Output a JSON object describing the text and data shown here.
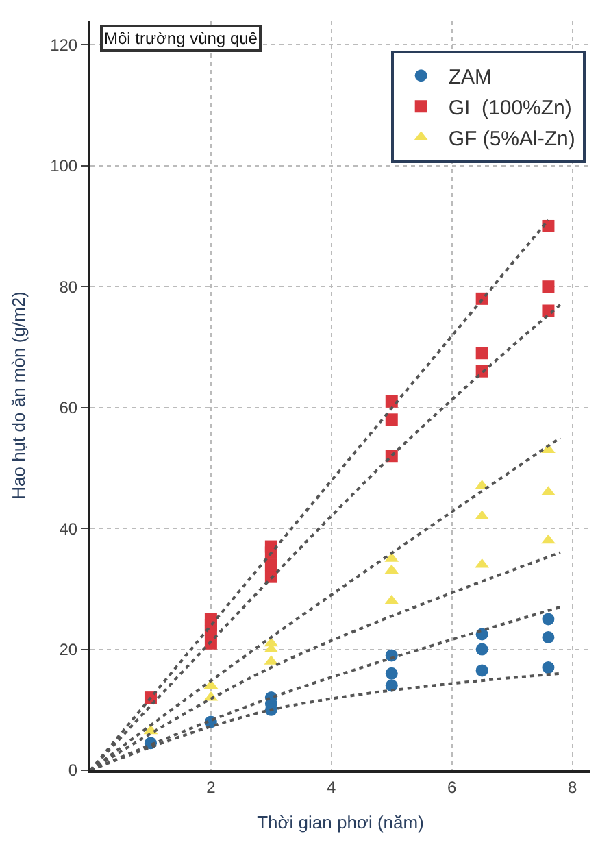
{
  "chart_data": {
    "type": "scatter",
    "xlabel": "Thời gian phơi (năm)",
    "ylabel": "Hao hụt do ăn mòn (g/m2)",
    "annotations": [
      "Môi trường vùng quê"
    ],
    "xlim": [
      0,
      8.3
    ],
    "xticks": [
      2,
      4,
      6,
      8
    ],
    "ylim": [
      0,
      124
    ],
    "yticks": [
      0,
      20,
      40,
      60,
      80,
      100,
      120
    ],
    "grid": true,
    "legend": "top right",
    "series": [
      {
        "name": "ZAM",
        "color": "#2a6fa8",
        "marker": "circle",
        "x": [
          1,
          2,
          3,
          3,
          3,
          5,
          5,
          5,
          6.5,
          6.5,
          6.5,
          7.6,
          7.6,
          7.6
        ],
        "values": [
          4.5,
          8,
          10,
          11,
          12,
          14,
          16,
          19,
          16.5,
          20,
          22.5,
          17,
          22,
          25
        ]
      },
      {
        "name": "GI  (100%Zn)",
        "color": "#d9363e",
        "marker": "square",
        "x": [
          1,
          2,
          2,
          2,
          2,
          3,
          3,
          3,
          3,
          5,
          5,
          5,
          6.5,
          6.5,
          6.5,
          7.6,
          7.6,
          7.6
        ],
        "values": [
          12,
          21,
          23,
          24,
          25,
          32,
          34,
          36,
          37,
          52,
          58,
          61,
          66,
          69,
          78,
          76,
          80,
          90
        ]
      },
      {
        "name": "GF (5%Al-Zn)",
        "color": "#f2e15a",
        "marker": "triangle",
        "x": [
          1,
          2,
          2,
          3,
          3,
          3,
          5,
          5,
          5,
          6.5,
          6.5,
          6.5,
          7.6,
          7.6,
          7.6
        ],
        "values": [
          6.5,
          12,
          14,
          18,
          20,
          21,
          28,
          33,
          35,
          34,
          42,
          47,
          38,
          46,
          53
        ]
      },
      {
        "type": "line",
        "color": "#555555",
        "line_style": "dotted",
        "x": [
          0,
          7.6
        ],
        "values": [
          0,
          91
        ]
      },
      {
        "type": "line",
        "color": "#555555",
        "line_style": "dotted",
        "x": [
          0,
          5,
          7.8
        ],
        "values": [
          0,
          52,
          77
        ]
      },
      {
        "type": "line",
        "color": "#555555",
        "line_style": "dotted",
        "x": [
          0,
          3,
          7.8
        ],
        "values": [
          0,
          22,
          55
        ]
      },
      {
        "type": "line",
        "color": "#555555",
        "line_style": "dotted",
        "x": [
          0,
          3,
          7.8
        ],
        "values": [
          0,
          17,
          36
        ]
      },
      {
        "type": "line",
        "color": "#555555",
        "line_style": "dotted",
        "x": [
          0,
          3,
          7.8
        ],
        "values": [
          0,
          12,
          27
        ]
      },
      {
        "type": "line",
        "color": "#555555",
        "line_style": "dotted",
        "x": [
          0,
          3,
          7.8
        ],
        "values": [
          0,
          10,
          16
        ]
      }
    ]
  }
}
